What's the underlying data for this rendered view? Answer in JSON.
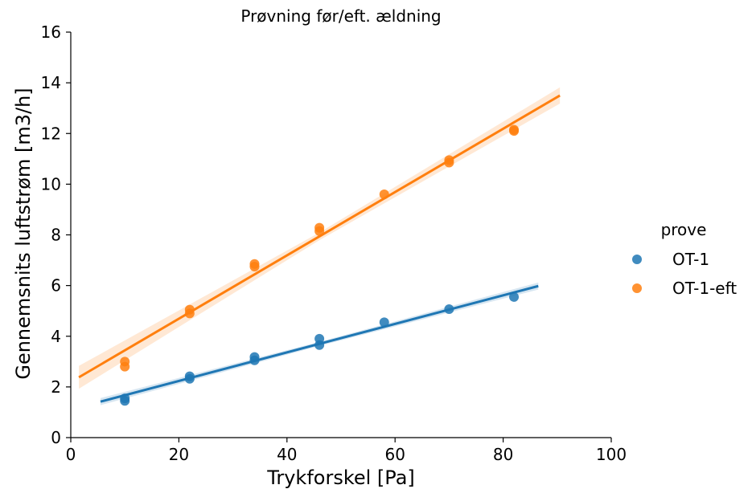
{
  "chart_data": {
    "type": "scatter",
    "title": "Prøvning før/eft. ældning",
    "xlabel": "Trykforskel [Pa]",
    "ylabel": "Gennemsnits luftstrøm [m3/h]",
    "xlim": [
      0,
      100
    ],
    "ylim": [
      0,
      16
    ],
    "xticks": [
      "0",
      "20",
      "40",
      "60",
      "80",
      "100"
    ],
    "yticks": [
      "0",
      "2",
      "4",
      "6",
      "8",
      "10",
      "12",
      "14",
      "16"
    ],
    "grid": false,
    "legend": {
      "title": "prove",
      "placement": "right",
      "entries": [
        "OT-1",
        "OT-1-eft"
      ]
    },
    "series": [
      {
        "name": "OT-1",
        "color": "#1f77b4",
        "points": [
          [
            10,
            1.45
          ],
          [
            10,
            1.55
          ],
          [
            22,
            2.32
          ],
          [
            22,
            2.42
          ],
          [
            34,
            3.05
          ],
          [
            34,
            3.18
          ],
          [
            46,
            3.65
          ],
          [
            46,
            3.9
          ],
          [
            58,
            4.55
          ],
          [
            70,
            5.07
          ],
          [
            82,
            5.55
          ]
        ],
        "fit": {
          "x": [
            5.5,
            86.5
          ],
          "y": [
            1.42,
            5.98
          ]
        },
        "ci_halfwidth": [
          0.14,
          0.08,
          0.14
        ]
      },
      {
        "name": "OT-1-eft",
        "color": "#ff7f0e",
        "points": [
          [
            10,
            2.8
          ],
          [
            10,
            3.0
          ],
          [
            22,
            4.9
          ],
          [
            22,
            5.05
          ],
          [
            34,
            6.75
          ],
          [
            34,
            6.85
          ],
          [
            46,
            8.15
          ],
          [
            46,
            8.28
          ],
          [
            58,
            9.6
          ],
          [
            70,
            10.85
          ],
          [
            70,
            10.95
          ],
          [
            82,
            12.1
          ],
          [
            82,
            12.15
          ]
        ],
        "fit": {
          "x": [
            1.5,
            90.5
          ],
          "y": [
            2.38,
            13.5
          ]
        },
        "ci_halfwidth": [
          0.45,
          0.15,
          0.32
        ]
      }
    ]
  }
}
